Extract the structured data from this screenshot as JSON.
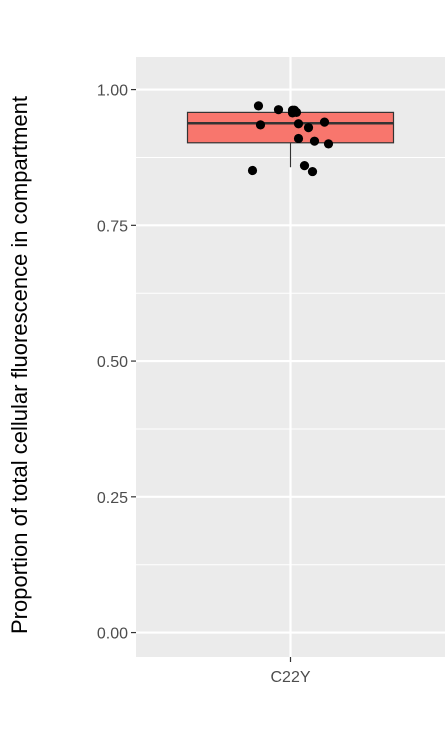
{
  "chart_data": {
    "type": "box",
    "title": "",
    "xlabel": "",
    "ylabel": "Proportion of total cellular fluorescence in compartment",
    "categories": [
      "C22Y"
    ],
    "ylim": [
      -0.045,
      1.06
    ],
    "yticks": [
      0.0,
      0.25,
      0.5,
      0.75,
      1.0
    ],
    "ytick_labels": [
      "0.00",
      "0.25",
      "0.50",
      "0.75",
      "1.00"
    ],
    "grid": true,
    "legend": "none",
    "box": {
      "category": "C22Y",
      "q1": 0.902,
      "median": 0.938,
      "q3": 0.958,
      "whisker_low": 0.857,
      "whisker_high": 0.958
    },
    "points": [
      0.97,
      0.963,
      0.958,
      0.962,
      0.962,
      0.957,
      0.94,
      0.937,
      0.935,
      0.93,
      0.91,
      0.905,
      0.9,
      0.86,
      0.851,
      0.849
    ],
    "colors": {
      "panel": "#EBEBEB",
      "grid": "#FFFFFF",
      "box_fill": "#F8766D",
      "box_line": "#333333",
      "points": "#000000"
    }
  }
}
